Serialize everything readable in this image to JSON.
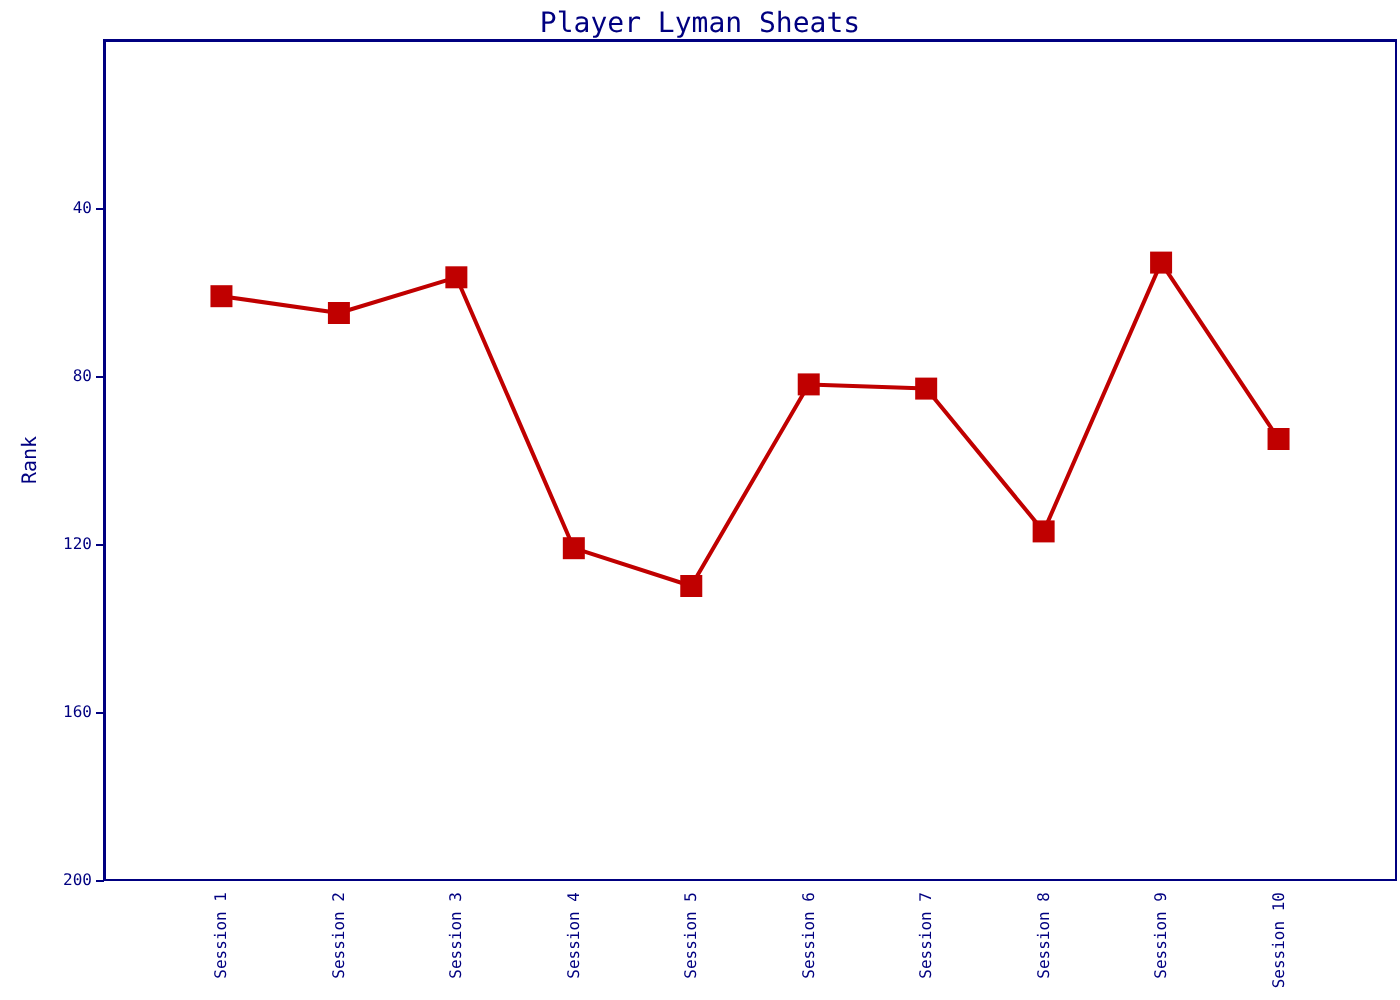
{
  "chart_data": {
    "type": "line",
    "title": "Player Lyman Sheats",
    "ylabel": "Rank",
    "categories": [
      "Session 1",
      "Session 2",
      "Session 3",
      "Session 4",
      "Session 5",
      "Session 6",
      "Session 7",
      "Session 8",
      "Session 9",
      "Session 10"
    ],
    "series": [
      {
        "color": "#c00000",
        "values": [
          61,
          65,
          56.5,
          121,
          130,
          82,
          83,
          117,
          53,
          95
        ]
      }
    ],
    "ylim": [
      200,
      0
    ],
    "yticks": [
      40,
      80,
      120,
      160,
      200
    ],
    "grid": false,
    "marker": "square",
    "line_style": "solid"
  }
}
